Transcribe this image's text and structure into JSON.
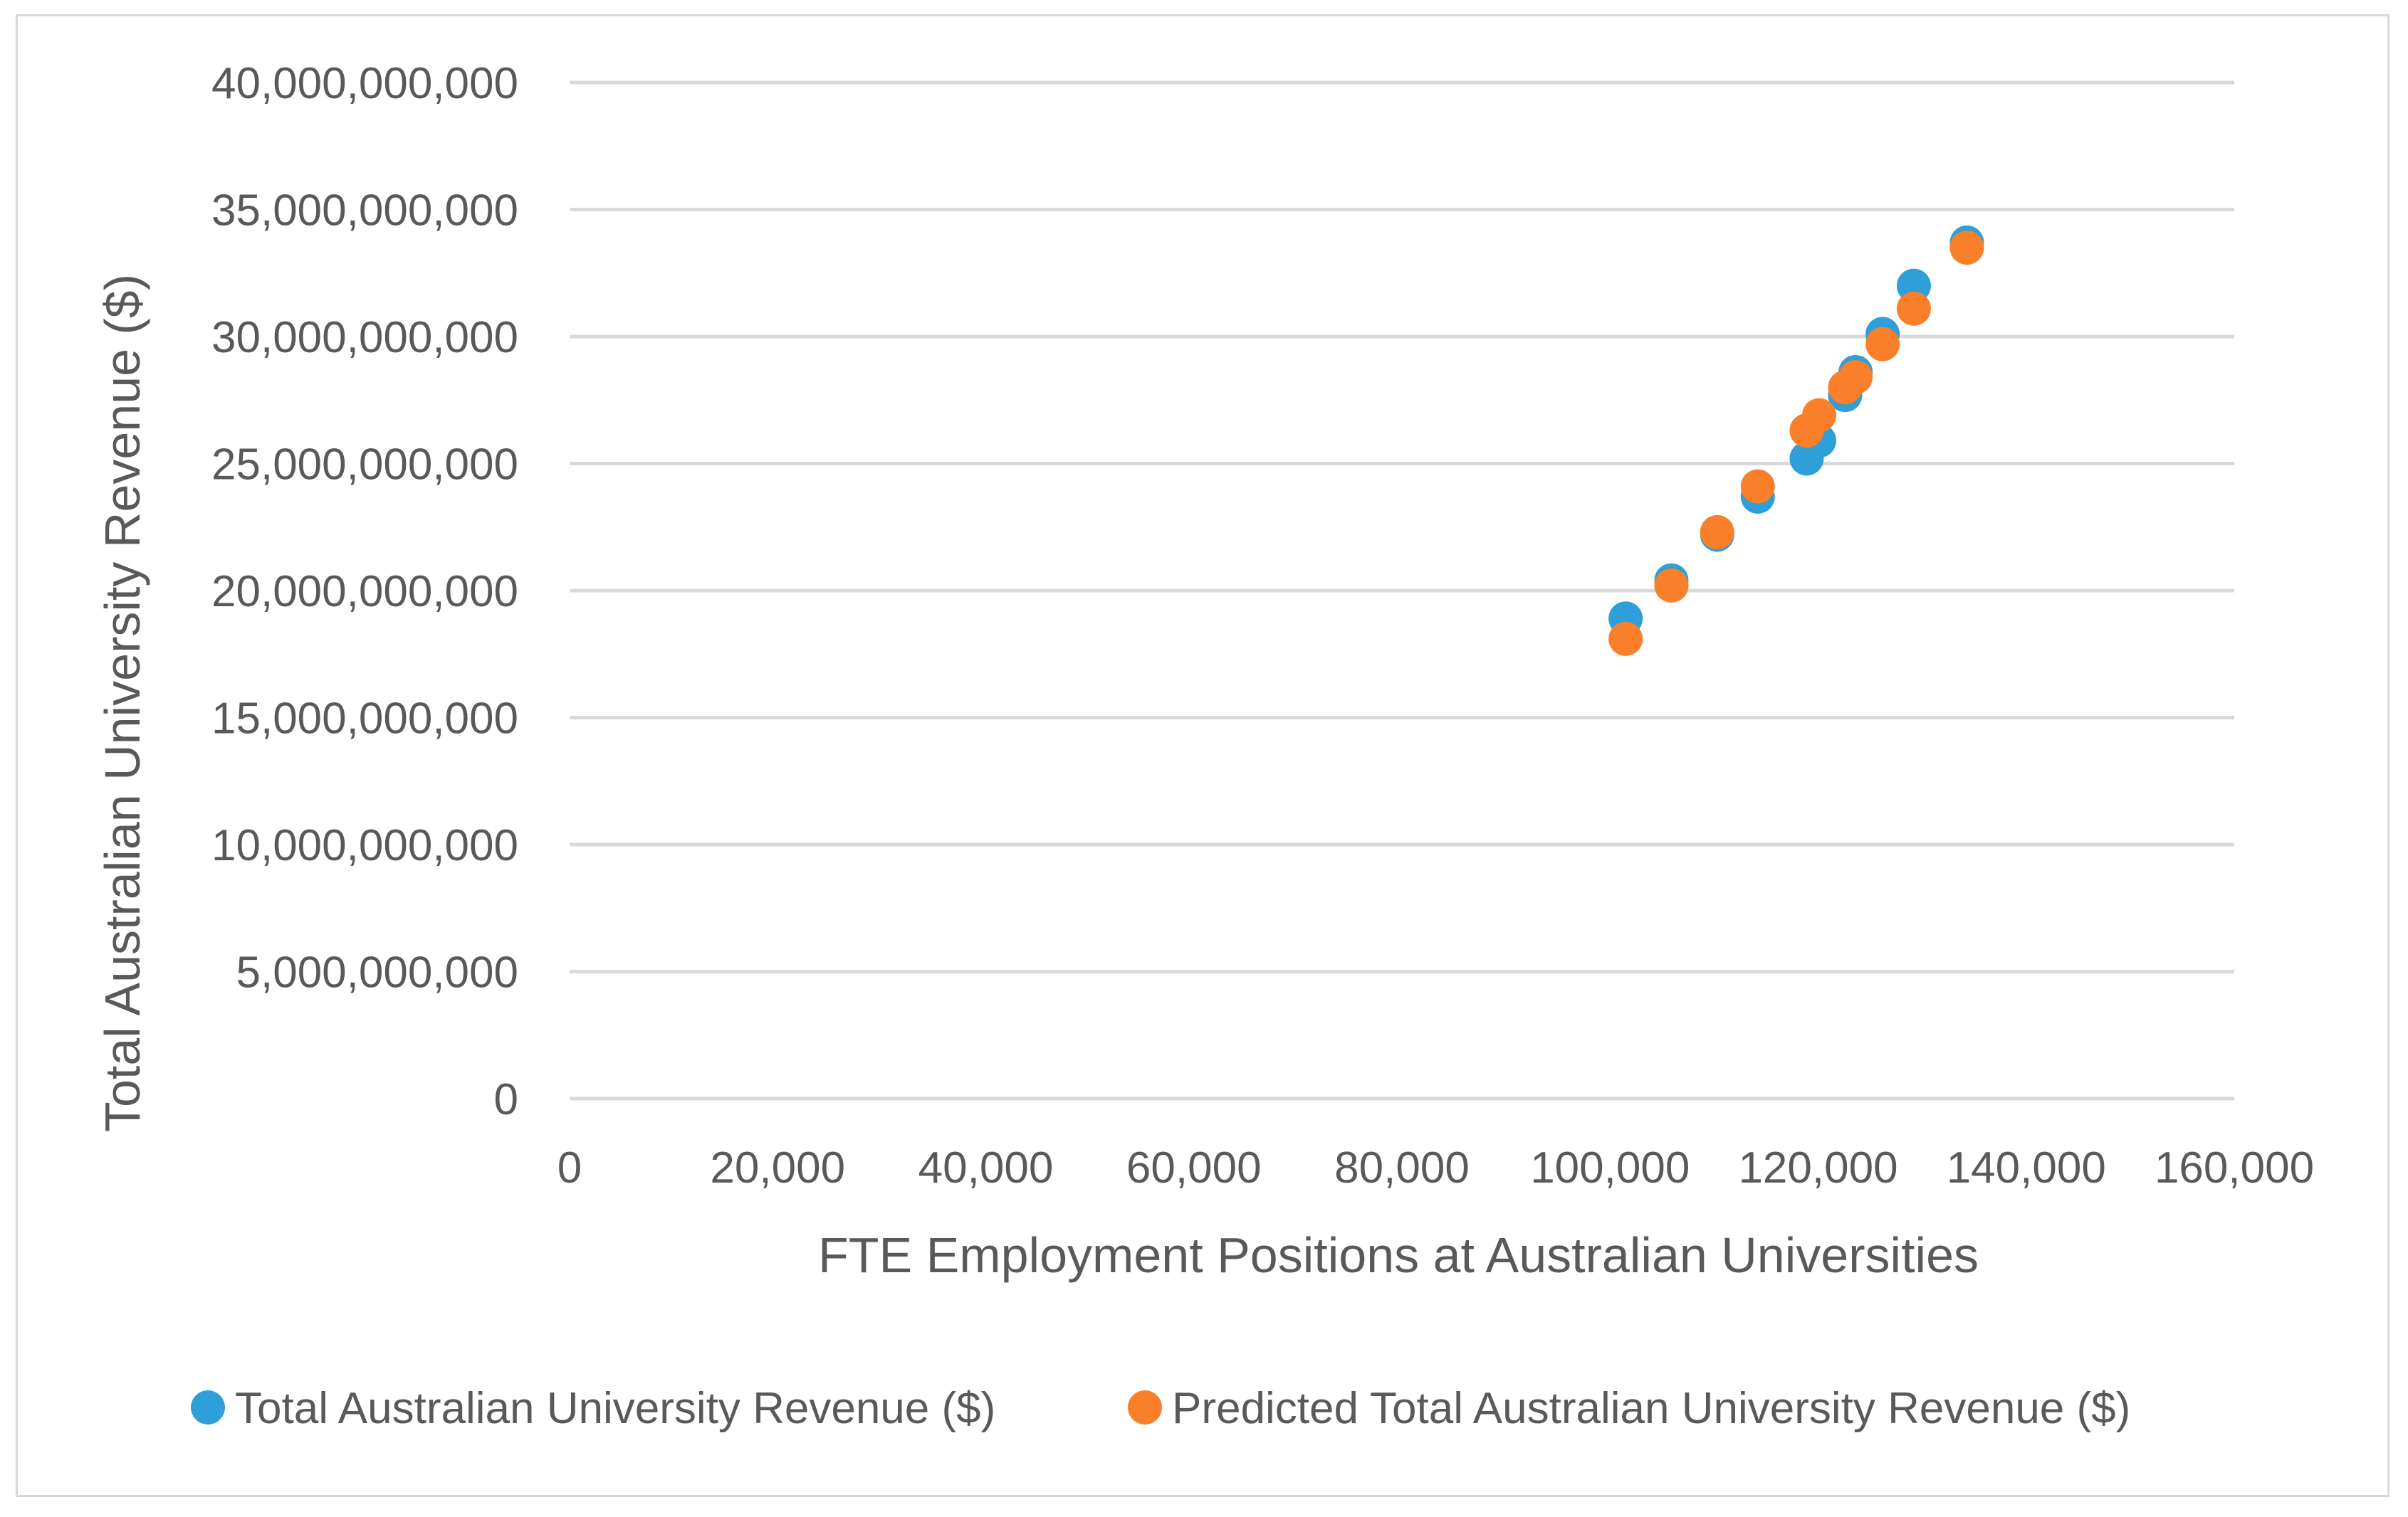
{
  "chart_data": {
    "type": "scatter",
    "title": "",
    "xlabel": "FTE Employment Positions at Australian Universities",
    "ylabel": "Total Australian University Revenue ($)",
    "xlim": [
      0,
      160000
    ],
    "ylim": [
      0,
      40000000000
    ],
    "x_ticks": [
      "0",
      "20,000",
      "40,000",
      "60,000",
      "80,000",
      "100,000",
      "120,000",
      "140,000",
      "160,000"
    ],
    "y_ticks": [
      "0",
      "5,000,000,000",
      "10,000,000,000",
      "15,000,000,000",
      "20,000,000,000",
      "25,000,000,000",
      "30,000,000,000",
      "35,000,000,000",
      "40,000,000,000"
    ],
    "grid": "horizontal",
    "legend_position": "bottom",
    "series": [
      {
        "name": "Total Australian University Revenue ($)",
        "color": "#2e9fd8",
        "x": [
          101500,
          105900,
          110300,
          114200,
          118900,
          120100,
          122600,
          123600,
          126200,
          129200,
          134300
        ],
        "y": [
          18900000000,
          20400000000,
          22200000000,
          23700000000,
          25200000000,
          25900000000,
          27700000000,
          28600000000,
          30100000000,
          32000000000,
          33700000000
        ]
      },
      {
        "name": "Predicted Total Australian University Revenue ($)",
        "color": "#f97f2a",
        "x": [
          101500,
          105900,
          110300,
          114200,
          118900,
          120100,
          122600,
          123600,
          126200,
          129200,
          134300
        ],
        "y": [
          18100000000,
          20200000000,
          22300000000,
          24100000000,
          26300000000,
          26900000000,
          28000000000,
          28400000000,
          29700000000,
          31100000000,
          33500000000
        ]
      }
    ]
  }
}
